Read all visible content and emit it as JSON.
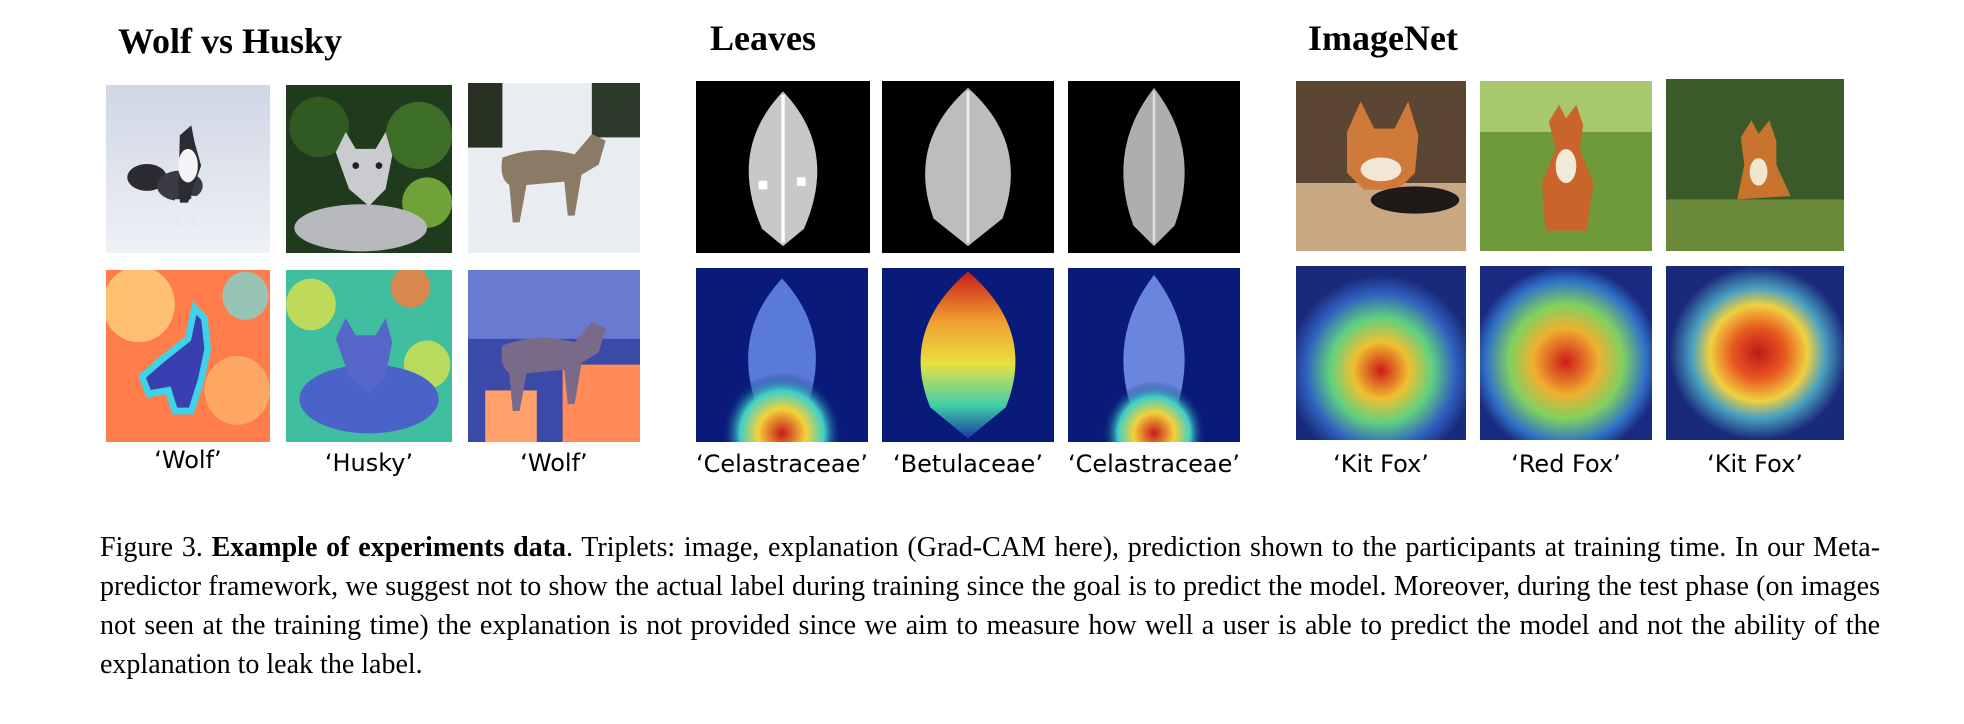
{
  "sections": [
    {
      "title": "Wolf vs Husky",
      "predictions": [
        "‘Wolf’",
        "‘Husky’",
        "‘Wolf’"
      ]
    },
    {
      "title": "Leaves",
      "predictions": [
        "‘Celastraceae’",
        "‘Betulaceae’",
        "‘Celastraceae’"
      ]
    },
    {
      "title": "ImageNet",
      "predictions": [
        "‘Kit Fox’",
        "‘Red Fox’",
        "‘Kit Fox’"
      ]
    }
  ],
  "caption": {
    "figure_number": "Figure 3.",
    "bold_title": "Example of experiments data",
    "text": ". Triplets: image, explanation (Grad-CAM here), prediction shown to the participants at training time. In our Meta-predictor framework, we suggest not to show the actual label during training since the goal is to predict the model. Moreover, during the test phase (on images not seen at the training time) the explanation is not provided since we aim to measure how well a user is able to predict the model and not the ability of the explanation to leak the label."
  }
}
